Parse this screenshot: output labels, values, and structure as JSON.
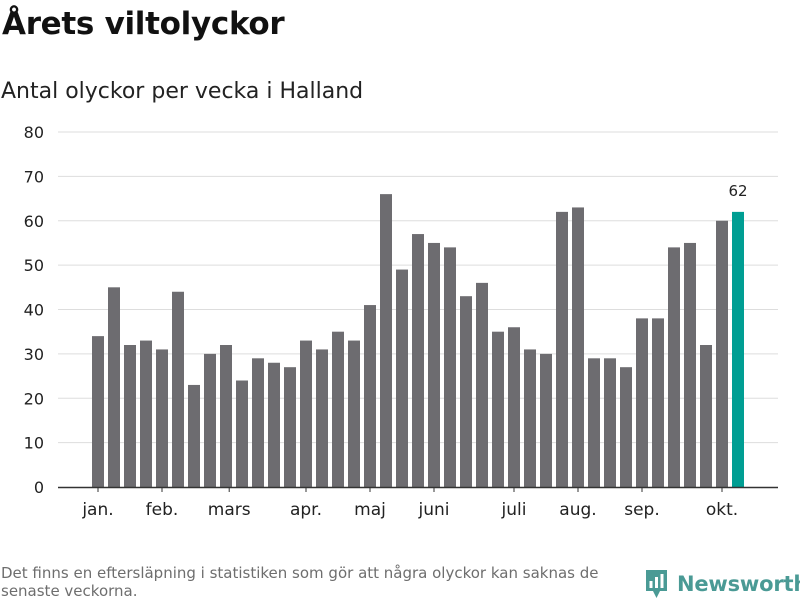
{
  "header": {
    "title": "Årets viltolyckor",
    "subtitle": "Antal olyckor per vecka i Halland"
  },
  "footer": {
    "note": "Det finns en eftersläpning i statistiken som gör att några olyckor kan saknas de senaste veckorna.",
    "brand": "Newsworthy"
  },
  "colors": {
    "bar": "#6d6c70",
    "highlight": "#009e93",
    "grid": "#dddddd",
    "axis": "#333333",
    "brand": "#4a9a95"
  },
  "chart_data": {
    "type": "bar",
    "title": "Antal olyckor per vecka i Halland",
    "xlabel": "",
    "ylabel": "",
    "ylim": [
      0,
      80
    ],
    "yticks": [
      0,
      10,
      20,
      30,
      40,
      50,
      60,
      70,
      80
    ],
    "weeks": [
      1,
      2,
      3,
      4,
      5,
      6,
      7,
      8,
      9,
      10,
      11,
      12,
      13,
      14,
      15,
      16,
      17,
      18,
      19,
      20,
      21,
      22,
      23,
      24,
      25,
      26,
      27,
      28,
      29,
      30,
      31,
      32,
      33,
      34,
      35,
      36,
      37,
      38,
      39,
      40,
      41
    ],
    "values": [
      34,
      45,
      32,
      33,
      31,
      44,
      23,
      30,
      32,
      24,
      29,
      28,
      27,
      33,
      31,
      35,
      33,
      41,
      66,
      49,
      57,
      55,
      54,
      43,
      46,
      35,
      36,
      31,
      30,
      62,
      63,
      29,
      29,
      27,
      38,
      38,
      54,
      55,
      32,
      60,
      62
    ],
    "highlight_index": 40,
    "highlight_label": "62",
    "month_labels": [
      {
        "label": "jan.",
        "week": 1.0
      },
      {
        "label": "feb.",
        "week": 5.0
      },
      {
        "label": "mars",
        "week": 9.2
      },
      {
        "label": "apr.",
        "week": 14.0
      },
      {
        "label": "maj",
        "week": 18.0
      },
      {
        "label": "juni",
        "week": 22.0
      },
      {
        "label": "juli",
        "week": 27.0
      },
      {
        "label": "aug.",
        "week": 31.0
      },
      {
        "label": "sep.",
        "week": 35.0
      },
      {
        "label": "okt.",
        "week": 40.0
      }
    ]
  }
}
